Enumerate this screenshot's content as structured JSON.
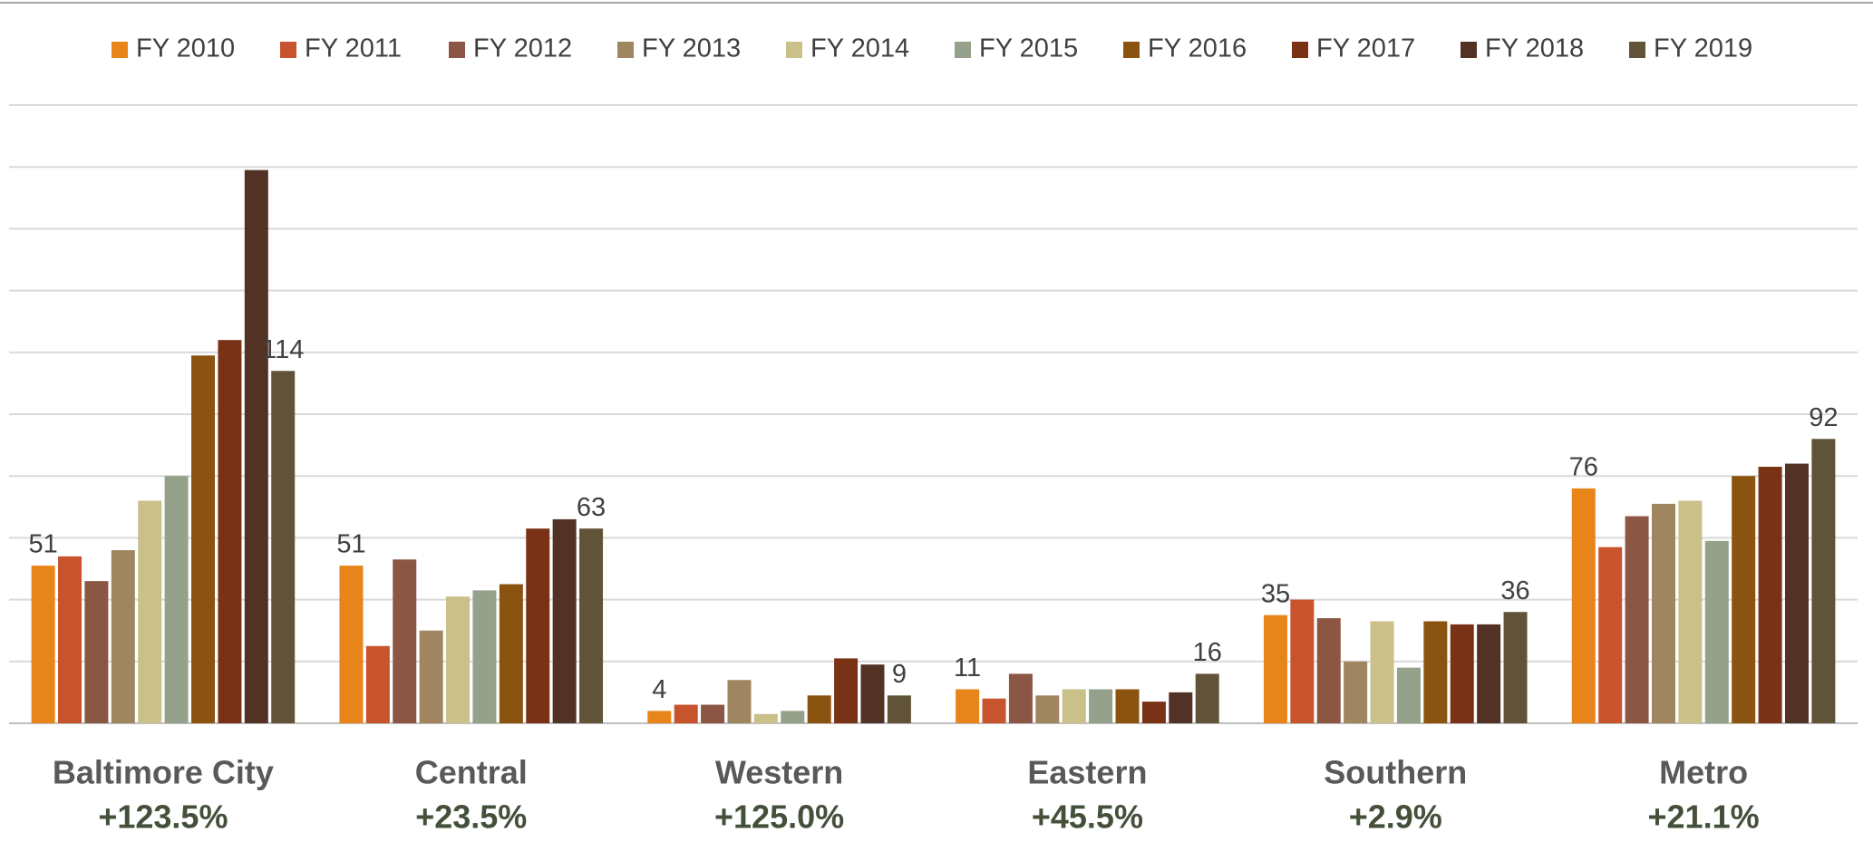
{
  "chart_data": {
    "type": "bar",
    "categories": [
      "Baltimore City",
      "Central",
      "Western",
      "Eastern",
      "Southern",
      "Metro"
    ],
    "changes": [
      "+123.5%",
      "+23.5%",
      "+125.0%",
      "+45.5%",
      "+2.9%",
      "+21.1%"
    ],
    "series": [
      {
        "name": "FY 2010",
        "color": "#e8851a",
        "values": [
          51,
          51,
          4,
          11,
          35,
          76
        ]
      },
      {
        "name": "FY 2011",
        "color": "#c8542d",
        "values": [
          54,
          25,
          6,
          8,
          40,
          57
        ]
      },
      {
        "name": "FY 2012",
        "color": "#8b5744",
        "values": [
          46,
          53,
          6,
          16,
          34,
          67
        ]
      },
      {
        "name": "FY 2013",
        "color": "#a08660",
        "values": [
          56,
          30,
          14,
          9,
          20,
          71
        ]
      },
      {
        "name": "FY 2014",
        "color": "#c9c08a",
        "values": [
          72,
          41,
          3,
          11,
          33,
          72
        ]
      },
      {
        "name": "FY 2015",
        "color": "#95a18a",
        "values": [
          80,
          43,
          4,
          11,
          18,
          59
        ]
      },
      {
        "name": "FY 2016",
        "color": "#8a5310",
        "values": [
          119,
          45,
          9,
          11,
          33,
          80
        ]
      },
      {
        "name": "FY 2017",
        "color": "#7a3217",
        "values": [
          124,
          63,
          21,
          7,
          32,
          83
        ]
      },
      {
        "name": "FY 2018",
        "color": "#533226",
        "values": [
          179,
          66,
          19,
          10,
          32,
          84
        ]
      },
      {
        "name": "FY 2019",
        "color": "#615337",
        "values": [
          114,
          63,
          9,
          16,
          36,
          92
        ]
      }
    ],
    "data_label_series": [
      0,
      9
    ],
    "ylim": [
      0,
      200
    ],
    "yticks": [
      0,
      20,
      40,
      60,
      80,
      100,
      120,
      140,
      160,
      180,
      200
    ],
    "grid": true,
    "legend": "top"
  }
}
